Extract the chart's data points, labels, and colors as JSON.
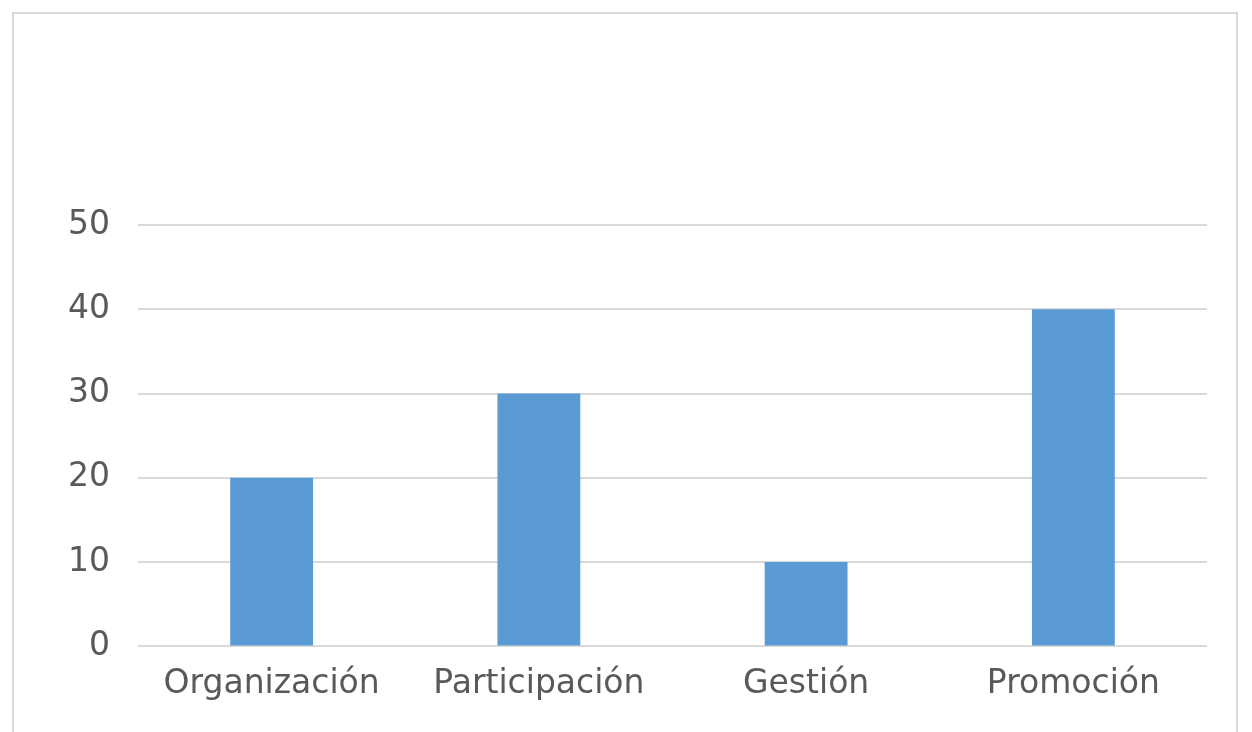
{
  "chart_data": {
    "type": "bar",
    "categories": [
      "Organización",
      "Participación",
      "Gestión",
      "Promoción"
    ],
    "values": [
      20,
      30,
      10,
      40
    ],
    "color": "#5b9bd5",
    "ylim": [
      0,
      50
    ],
    "yticks": [
      0,
      10,
      20,
      30,
      40,
      50
    ],
    "grid": "y",
    "legend": false
  }
}
